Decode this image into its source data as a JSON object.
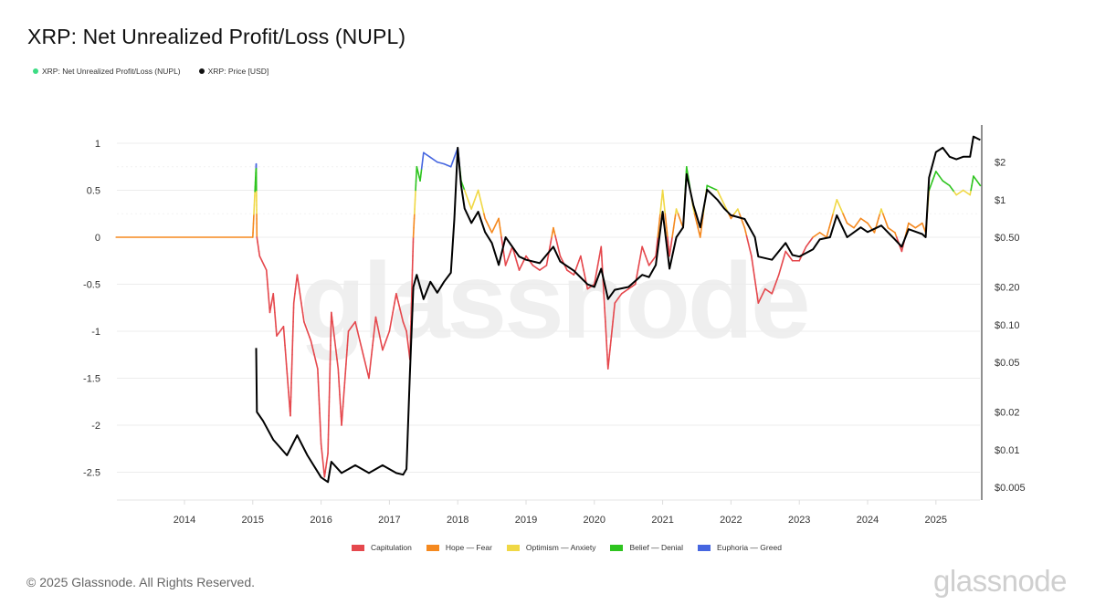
{
  "title": "XRP: Net Unrealized Profit/Loss (NUPL)",
  "top_legend": [
    {
      "label": "XRP: Net Unrealized Profit/Loss (NUPL)",
      "color": "#3ddc84"
    },
    {
      "label": "XRP: Price [USD]",
      "color": "#111111"
    }
  ],
  "bottom_legend": [
    {
      "label": "Capitulation",
      "color": "#e5484d"
    },
    {
      "label": "Hope — Fear",
      "color": "#f5891f"
    },
    {
      "label": "Optimism — Anxiety",
      "color": "#f0d845"
    },
    {
      "label": "Belief — Denial",
      "color": "#2ec41f"
    },
    {
      "label": "Euphoria — Greed",
      "color": "#4666e0"
    }
  ],
  "footer": {
    "copyright": "© 2025 Glassnode. All Rights Reserved.",
    "brand": "glassnode"
  },
  "watermark": "glassnode",
  "chart_data": {
    "type": "line",
    "title": "XRP: Net Unrealized Profit/Loss (NUPL)",
    "xlabel": "",
    "ylabel": "",
    "y2label": "",
    "x_ticks": [
      "2014",
      "2015",
      "2016",
      "2017",
      "2018",
      "2019",
      "2020",
      "2021",
      "2022",
      "2023",
      "2024",
      "2025"
    ],
    "y_ticks": [
      1,
      0.5,
      0,
      -0.5,
      -1,
      -1.5,
      -2,
      -2.5
    ],
    "y_tick_labels": [
      "1",
      "0.5",
      "0",
      "-0.5",
      "-1",
      "-1.5",
      "-2",
      "-2.5"
    ],
    "ylim": [
      -2.85,
      1.05
    ],
    "y2_ticks": [
      "$2",
      "$1",
      "$0.50",
      "$0.20",
      "$0.10",
      "$0.05",
      "$0.02",
      "$0.01",
      "$0.005"
    ],
    "y2_scale": "log",
    "grid": true,
    "legend_position": "top-left and bottom-center",
    "zones": [
      {
        "name": "Capitulation",
        "range": [
          -3,
          0
        ],
        "color": "#e5484d"
      },
      {
        "name": "Hope — Fear",
        "range": [
          0,
          0.25
        ],
        "color": "#f5891f"
      },
      {
        "name": "Optimism — Anxiety",
        "range": [
          0.25,
          0.5
        ],
        "color": "#f0d845"
      },
      {
        "name": "Belief — Denial",
        "range": [
          0.5,
          0.75
        ],
        "color": "#2ec41f"
      },
      {
        "name": "Euphoria — Greed",
        "range": [
          0.75,
          1.0
        ],
        "color": "#4666e0"
      }
    ],
    "series": [
      {
        "name": "XRP: Net Unrealized Profit/Loss (NUPL)",
        "axis": "left",
        "points": [
          [
            2013.0,
            0
          ],
          [
            2015.0,
            0
          ],
          [
            2015.05,
            0.78
          ],
          [
            2015.06,
            0
          ],
          [
            2015.1,
            -0.2
          ],
          [
            2015.2,
            -0.35
          ],
          [
            2015.25,
            -0.8
          ],
          [
            2015.3,
            -0.6
          ],
          [
            2015.35,
            -1.05
          ],
          [
            2015.45,
            -0.95
          ],
          [
            2015.55,
            -1.9
          ],
          [
            2015.6,
            -0.7
          ],
          [
            2015.65,
            -0.4
          ],
          [
            2015.75,
            -0.9
          ],
          [
            2015.85,
            -1.1
          ],
          [
            2015.95,
            -1.4
          ],
          [
            2016.0,
            -2.2
          ],
          [
            2016.05,
            -2.55
          ],
          [
            2016.1,
            -2.3
          ],
          [
            2016.15,
            -0.8
          ],
          [
            2016.25,
            -1.4
          ],
          [
            2016.3,
            -2.0
          ],
          [
            2016.4,
            -1.0
          ],
          [
            2016.5,
            -0.9
          ],
          [
            2016.6,
            -1.2
          ],
          [
            2016.7,
            -1.5
          ],
          [
            2016.8,
            -0.85
          ],
          [
            2016.9,
            -1.2
          ],
          [
            2017.0,
            -1.0
          ],
          [
            2017.1,
            -0.6
          ],
          [
            2017.2,
            -0.9
          ],
          [
            2017.25,
            -1.0
          ],
          [
            2017.3,
            -1.3
          ],
          [
            2017.35,
            0.0
          ],
          [
            2017.4,
            0.75
          ],
          [
            2017.45,
            0.6
          ],
          [
            2017.5,
            0.9
          ],
          [
            2017.6,
            0.85
          ],
          [
            2017.7,
            0.8
          ],
          [
            2017.8,
            0.78
          ],
          [
            2017.9,
            0.75
          ],
          [
            2018.0,
            0.95
          ],
          [
            2018.05,
            0.6
          ],
          [
            2018.1,
            0.5
          ],
          [
            2018.2,
            0.3
          ],
          [
            2018.3,
            0.5
          ],
          [
            2018.4,
            0.2
          ],
          [
            2018.5,
            0.05
          ],
          [
            2018.6,
            0.2
          ],
          [
            2018.7,
            -0.3
          ],
          [
            2018.8,
            -0.1
          ],
          [
            2018.9,
            -0.35
          ],
          [
            2019.0,
            -0.2
          ],
          [
            2019.1,
            -0.3
          ],
          [
            2019.2,
            -0.35
          ],
          [
            2019.3,
            -0.3
          ],
          [
            2019.4,
            0.1
          ],
          [
            2019.5,
            -0.2
          ],
          [
            2019.6,
            -0.35
          ],
          [
            2019.7,
            -0.4
          ],
          [
            2019.8,
            -0.2
          ],
          [
            2019.9,
            -0.55
          ],
          [
            2020.0,
            -0.5
          ],
          [
            2020.1,
            -0.1
          ],
          [
            2020.2,
            -1.4
          ],
          [
            2020.3,
            -0.7
          ],
          [
            2020.4,
            -0.6
          ],
          [
            2020.5,
            -0.55
          ],
          [
            2020.6,
            -0.5
          ],
          [
            2020.7,
            -0.1
          ],
          [
            2020.8,
            -0.3
          ],
          [
            2020.9,
            -0.2
          ],
          [
            2021.0,
            0.5
          ],
          [
            2021.1,
            -0.2
          ],
          [
            2021.2,
            0.3
          ],
          [
            2021.3,
            0.1
          ],
          [
            2021.35,
            0.75
          ],
          [
            2021.45,
            0.3
          ],
          [
            2021.55,
            -0.0
          ],
          [
            2021.65,
            0.55
          ],
          [
            2021.8,
            0.5
          ],
          [
            2021.9,
            0.35
          ],
          [
            2022.0,
            0.2
          ],
          [
            2022.1,
            0.3
          ],
          [
            2022.2,
            0.1
          ],
          [
            2022.3,
            -0.2
          ],
          [
            2022.4,
            -0.7
          ],
          [
            2022.5,
            -0.55
          ],
          [
            2022.6,
            -0.6
          ],
          [
            2022.7,
            -0.4
          ],
          [
            2022.8,
            -0.15
          ],
          [
            2022.9,
            -0.25
          ],
          [
            2023.0,
            -0.25
          ],
          [
            2023.1,
            -0.1
          ],
          [
            2023.2,
            -0.0
          ],
          [
            2023.3,
            0.05
          ],
          [
            2023.4,
            0.0
          ],
          [
            2023.55,
            0.4
          ],
          [
            2023.7,
            0.15
          ],
          [
            2023.8,
            0.1
          ],
          [
            2023.9,
            0.2
          ],
          [
            2024.0,
            0.15
          ],
          [
            2024.1,
            0.05
          ],
          [
            2024.2,
            0.3
          ],
          [
            2024.3,
            0.1
          ],
          [
            2024.4,
            0.05
          ],
          [
            2024.5,
            -0.15
          ],
          [
            2024.6,
            0.15
          ],
          [
            2024.7,
            0.1
          ],
          [
            2024.8,
            0.15
          ],
          [
            2024.85,
            0.05
          ],
          [
            2024.9,
            0.5
          ],
          [
            2025.0,
            0.7
          ],
          [
            2025.1,
            0.6
          ],
          [
            2025.2,
            0.55
          ],
          [
            2025.3,
            0.45
          ],
          [
            2025.4,
            0.5
          ],
          [
            2025.5,
            0.45
          ],
          [
            2025.55,
            0.65
          ],
          [
            2025.65,
            0.55
          ]
        ]
      },
      {
        "name": "XRP: Price [USD]",
        "axis": "right",
        "points": [
          [
            2015.05,
            0.065
          ],
          [
            2015.06,
            0.02
          ],
          [
            2015.15,
            0.017
          ],
          [
            2015.3,
            0.012
          ],
          [
            2015.5,
            0.009
          ],
          [
            2015.65,
            0.013
          ],
          [
            2015.8,
            0.009
          ],
          [
            2016.0,
            0.006
          ],
          [
            2016.1,
            0.0055
          ],
          [
            2016.15,
            0.008
          ],
          [
            2016.3,
            0.0065
          ],
          [
            2016.5,
            0.0075
          ],
          [
            2016.7,
            0.0065
          ],
          [
            2016.9,
            0.0075
          ],
          [
            2017.1,
            0.0065
          ],
          [
            2017.2,
            0.0063
          ],
          [
            2017.25,
            0.007
          ],
          [
            2017.3,
            0.04
          ],
          [
            2017.35,
            0.2
          ],
          [
            2017.4,
            0.25
          ],
          [
            2017.5,
            0.16
          ],
          [
            2017.6,
            0.22
          ],
          [
            2017.7,
            0.18
          ],
          [
            2017.8,
            0.22
          ],
          [
            2017.9,
            0.26
          ],
          [
            2017.95,
            0.7
          ],
          [
            2018.0,
            2.6
          ],
          [
            2018.05,
            1.3
          ],
          [
            2018.1,
            0.85
          ],
          [
            2018.2,
            0.65
          ],
          [
            2018.3,
            0.8
          ],
          [
            2018.4,
            0.55
          ],
          [
            2018.5,
            0.45
          ],
          [
            2018.6,
            0.3
          ],
          [
            2018.7,
            0.5
          ],
          [
            2018.8,
            0.42
          ],
          [
            2018.9,
            0.35
          ],
          [
            2019.0,
            0.33
          ],
          [
            2019.2,
            0.31
          ],
          [
            2019.4,
            0.42
          ],
          [
            2019.5,
            0.32
          ],
          [
            2019.7,
            0.27
          ],
          [
            2019.9,
            0.21
          ],
          [
            2020.0,
            0.2
          ],
          [
            2020.1,
            0.28
          ],
          [
            2020.2,
            0.16
          ],
          [
            2020.3,
            0.19
          ],
          [
            2020.5,
            0.2
          ],
          [
            2020.7,
            0.25
          ],
          [
            2020.8,
            0.24
          ],
          [
            2020.9,
            0.3
          ],
          [
            2021.0,
            0.8
          ],
          [
            2021.1,
            0.28
          ],
          [
            2021.2,
            0.5
          ],
          [
            2021.3,
            0.6
          ],
          [
            2021.35,
            1.6
          ],
          [
            2021.45,
            0.9
          ],
          [
            2021.55,
            0.6
          ],
          [
            2021.65,
            1.2
          ],
          [
            2021.8,
            1.0
          ],
          [
            2021.9,
            0.85
          ],
          [
            2022.0,
            0.75
          ],
          [
            2022.2,
            0.7
          ],
          [
            2022.35,
            0.5
          ],
          [
            2022.4,
            0.35
          ],
          [
            2022.6,
            0.33
          ],
          [
            2022.8,
            0.45
          ],
          [
            2022.9,
            0.36
          ],
          [
            2023.0,
            0.35
          ],
          [
            2023.2,
            0.4
          ],
          [
            2023.3,
            0.48
          ],
          [
            2023.45,
            0.5
          ],
          [
            2023.55,
            0.75
          ],
          [
            2023.7,
            0.5
          ],
          [
            2023.9,
            0.6
          ],
          [
            2024.0,
            0.55
          ],
          [
            2024.2,
            0.62
          ],
          [
            2024.4,
            0.48
          ],
          [
            2024.5,
            0.42
          ],
          [
            2024.6,
            0.58
          ],
          [
            2024.8,
            0.53
          ],
          [
            2024.85,
            0.5
          ],
          [
            2024.9,
            1.5
          ],
          [
            2025.0,
            2.4
          ],
          [
            2025.1,
            2.6
          ],
          [
            2025.2,
            2.2
          ],
          [
            2025.3,
            2.1
          ],
          [
            2025.4,
            2.2
          ],
          [
            2025.5,
            2.2
          ],
          [
            2025.55,
            3.2
          ],
          [
            2025.65,
            3.0
          ]
        ]
      }
    ]
  }
}
